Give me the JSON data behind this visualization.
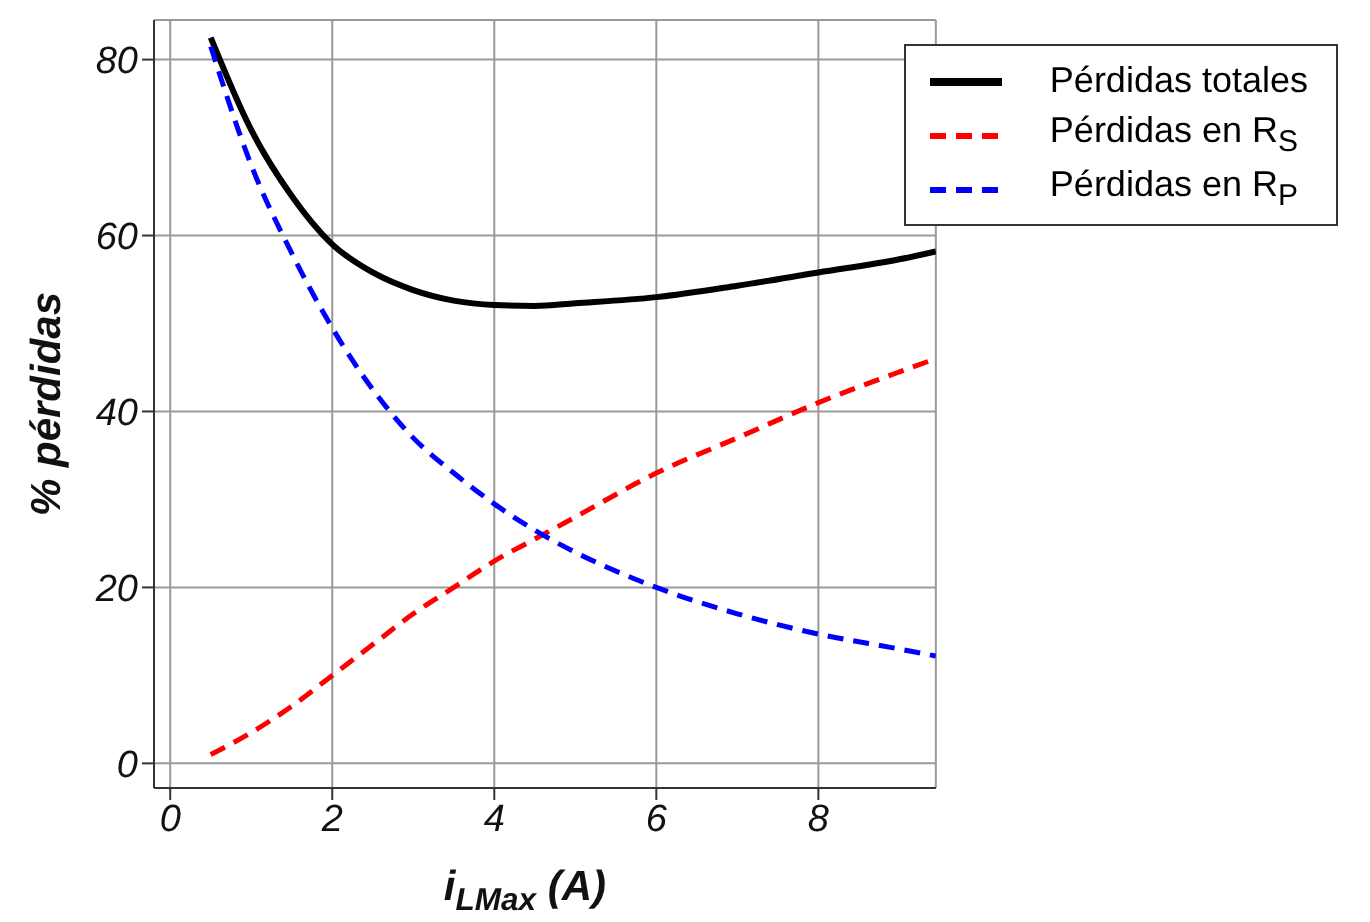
{
  "chart_data": {
    "type": "line",
    "xlabel": "i$_{LMax}$ (A)",
    "ylabel": "% pérdidas",
    "x": [
      0.5,
      1,
      1.5,
      2,
      2.5,
      3,
      3.5,
      4,
      4.5,
      5,
      6,
      7,
      8,
      9,
      9.45
    ],
    "series": [
      {
        "name": "Pérdidas totales",
        "color": "#000000",
        "line_style": "solid",
        "values": [
          82.5,
          72,
          64.5,
          59,
          55.8,
          53.8,
          52.6,
          52.1,
          52,
          52.3,
          53,
          54.3,
          55.8,
          57.3,
          58.2
        ]
      },
      {
        "name": "Pérdidas en R$_{S}$",
        "color": "#ff0000",
        "line_style": "dashed",
        "values": [
          1,
          3.5,
          6.5,
          10,
          13.5,
          17,
          20,
          23,
          25.5,
          28,
          33,
          37,
          41,
          44.5,
          46
        ]
      },
      {
        "name": "Pérdidas en R$_{P}$",
        "color": "#0000ff",
        "line_style": "dashed",
        "values": [
          81.5,
          68,
          58,
          49.5,
          42.5,
          37,
          33,
          29.5,
          26.5,
          24,
          20,
          17,
          14.7,
          13,
          12.2
        ]
      }
    ],
    "xlim": [
      -0.2,
      9.45
    ],
    "ylim": [
      -2.8,
      84.5
    ],
    "xticks": [
      0,
      2,
      4,
      6,
      8
    ],
    "yticks": [
      0,
      20,
      40,
      60,
      80
    ],
    "grid": true,
    "legend": "top right",
    "marker": "none"
  }
}
